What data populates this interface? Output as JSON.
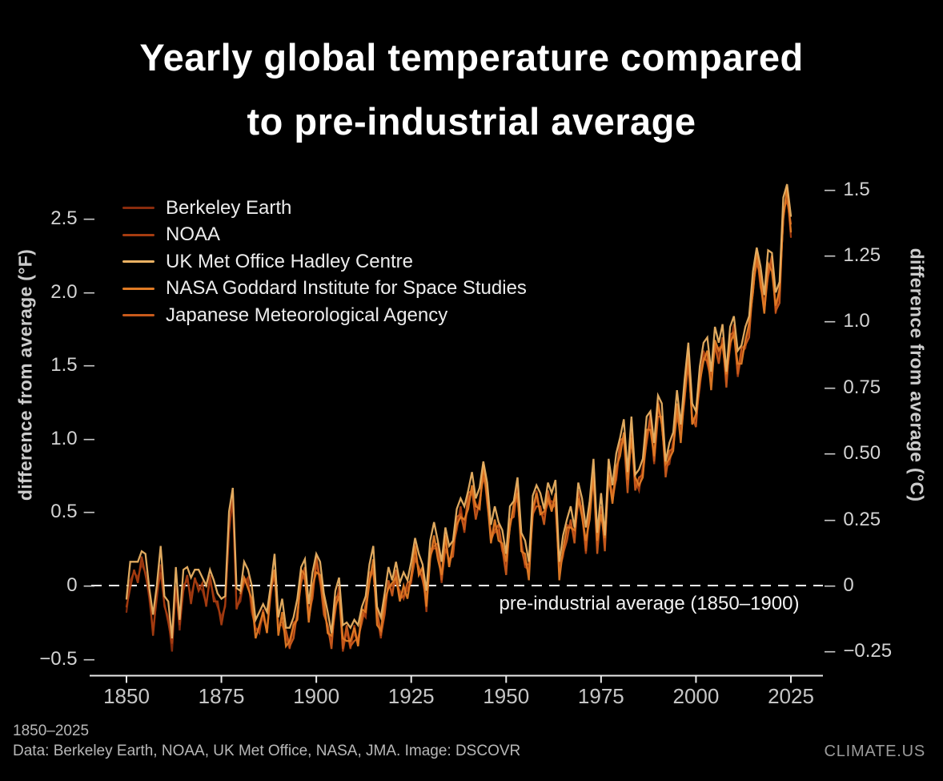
{
  "title": {
    "line1": "Yearly global temperature compared",
    "line2": "to pre-industrial average"
  },
  "footer": {
    "range": "1850–2025",
    "credits": "Data: Berkeley Earth, NOAA, UK Met Office, NASA, JMA. Image: DSCOVR",
    "brand": "CLIMATE.US"
  },
  "chart_data": {
    "type": "line",
    "title": "Yearly global temperature compared to pre-industrial average",
    "baseline_label": "pre-industrial average (1850–1900)",
    "xlabel": "",
    "ylabel_left": "difference from average (°F)",
    "ylabel_right": "difference from average (°C)",
    "x_start_year": 1850,
    "x_end_year": 2025,
    "ylim_f": [
      -0.5,
      2.5
    ],
    "ylim_c": [
      -0.25,
      1.5
    ],
    "grid": false,
    "legend_position": "top-left",
    "background_color": "#000000",
    "baseline_line_color": "#ffffff",
    "axis_line_color": "#eaeaea",
    "axes": {
      "x_ticks": [
        {
          "label": "1850",
          "value": 1850
        },
        {
          "label": "1875",
          "value": 1875
        },
        {
          "label": "1900",
          "value": 1900
        },
        {
          "label": "1925",
          "value": 1925
        },
        {
          "label": "1950",
          "value": 1950
        },
        {
          "label": "1975",
          "value": 1975
        },
        {
          "label": "2000",
          "value": 2000
        },
        {
          "label": "2025",
          "value": 2025
        }
      ],
      "left_ticks_f": [
        {
          "label": "2.5",
          "value": 2.5
        },
        {
          "label": "2.0",
          "value": 2.0
        },
        {
          "label": "1.5",
          "value": 1.5
        },
        {
          "label": "1.0",
          "value": 1.0
        },
        {
          "label": "0.5",
          "value": 0.5
        },
        {
          "label": "0",
          "value": 0
        },
        {
          "label": "−0.5",
          "value": -0.5
        }
      ],
      "right_ticks_c": [
        {
          "label": "1.5",
          "value": 1.5
        },
        {
          "label": "1.25",
          "value": 1.25
        },
        {
          "label": "1.0",
          "value": 1.0
        },
        {
          "label": "0.75",
          "value": 0.75
        },
        {
          "label": "0.50",
          "value": 0.5
        },
        {
          "label": "0.25",
          "value": 0.25
        },
        {
          "label": "0",
          "value": 0
        },
        {
          "label": "−0.25",
          "value": -0.25
        }
      ]
    },
    "units_of_values": "°C difference from 1850–1900 average, yearly 1850–2025",
    "base_values_c": [
      -0.1,
      0.02,
      0.05,
      0.03,
      0.08,
      0.05,
      -0.05,
      -0.17,
      -0.05,
      0.08,
      -0.08,
      -0.12,
      -0.25,
      0.0,
      -0.17,
      0.0,
      0.02,
      -0.04,
      0.02,
      0.0,
      -0.02,
      -0.07,
      0.02,
      -0.04,
      -0.08,
      -0.12,
      -0.08,
      0.22,
      0.32,
      -0.08,
      -0.06,
      0.03,
      0.01,
      -0.07,
      -0.17,
      -0.16,
      -0.12,
      -0.17,
      -0.04,
      0.06,
      -0.17,
      -0.12,
      -0.2,
      -0.22,
      -0.17,
      -0.12,
      0.03,
      0.04,
      -0.12,
      -0.02,
      0.08,
      0.03,
      -0.08,
      -0.17,
      -0.22,
      -0.08,
      -0.02,
      -0.22,
      -0.18,
      -0.22,
      -0.18,
      -0.22,
      -0.12,
      -0.1,
      0.03,
      0.08,
      -0.12,
      -0.18,
      -0.08,
      0.0,
      -0.02,
      0.03,
      -0.04,
      -0.02,
      -0.02,
      0.03,
      0.13,
      0.05,
      0.04,
      -0.08,
      0.12,
      0.17,
      0.13,
      0.03,
      0.17,
      0.08,
      0.13,
      0.23,
      0.28,
      0.23,
      0.32,
      0.37,
      0.28,
      0.3,
      0.43,
      0.33,
      0.18,
      0.23,
      0.2,
      0.15,
      0.07,
      0.23,
      0.28,
      0.35,
      0.15,
      0.1,
      0.05,
      0.28,
      0.33,
      0.28,
      0.25,
      0.33,
      0.3,
      0.33,
      0.05,
      0.13,
      0.2,
      0.23,
      0.18,
      0.33,
      0.28,
      0.15,
      0.28,
      0.42,
      0.15,
      0.28,
      0.15,
      0.42,
      0.33,
      0.43,
      0.52,
      0.57,
      0.38,
      0.57,
      0.38,
      0.38,
      0.43,
      0.57,
      0.62,
      0.48,
      0.67,
      0.62,
      0.43,
      0.48,
      0.53,
      0.67,
      0.57,
      0.72,
      0.87,
      0.62,
      0.62,
      0.77,
      0.87,
      0.87,
      0.77,
      0.92,
      0.87,
      0.92,
      0.77,
      0.92,
      0.97,
      0.82,
      0.87,
      0.92,
      0.97,
      1.12,
      1.24,
      1.15,
      1.05,
      1.2,
      1.22,
      1.05,
      1.1,
      1.4,
      1.48,
      1.34
    ],
    "series": [
      {
        "name": "Berkeley Earth",
        "color": "#892c0d",
        "start_year": 1850,
        "draw_order": 1,
        "offset_cycle_c": [
          0
        ]
      },
      {
        "name": "NOAA",
        "color": "#a63c10",
        "start_year": 1850,
        "draw_order": 2,
        "offset_cycle_c": [
          0.02,
          -0.03,
          0.01,
          -0.02,
          0.03,
          -0.01,
          0.02,
          -0.02
        ]
      },
      {
        "name": "UK Met Office Hadley Centre",
        "color": "#eab163",
        "start_year": 1850,
        "draw_order": 5,
        "offset_cycle_c": [
          0.05,
          0.07,
          0.04,
          0.06,
          0.05,
          0.07,
          0.04,
          0.06
        ]
      },
      {
        "name": "NASA Goddard Institute for Space Studies",
        "color": "#e07b25",
        "start_year": 1880,
        "draw_order": 4,
        "offset_cycle_c": [
          0.03,
          0.0,
          -0.02,
          0.02,
          -0.03,
          0.01,
          0.02,
          -0.01
        ]
      },
      {
        "name": "Japanese Meteorological Agency",
        "color": "#c85a1b",
        "start_year": 1891,
        "draw_order": 3,
        "offset_cycle_c": [
          -0.02,
          0.03,
          -0.01,
          -0.03,
          0.02,
          -0.02,
          0.03,
          -0.01
        ]
      }
    ]
  }
}
